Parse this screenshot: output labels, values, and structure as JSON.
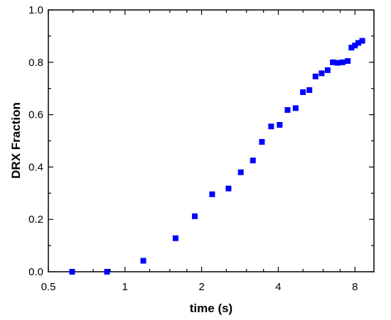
{
  "chart_data": {
    "type": "scatter",
    "xlabel": "time (s)",
    "ylabel": "DRX Fraction",
    "x_scale": "log2",
    "xlim": [
      0.5,
      9.5
    ],
    "ylim": [
      0.0,
      1.0
    ],
    "x_ticks": [
      0.5,
      1,
      2,
      4,
      8
    ],
    "x_tick_labels": [
      "0.5",
      "1",
      "2",
      "4",
      "8"
    ],
    "y_ticks": [
      0.0,
      0.2,
      0.4,
      0.6,
      0.8,
      1.0
    ],
    "y_tick_labels": [
      "0.0",
      "0.2",
      "0.4",
      "0.6",
      "0.8",
      "1.0"
    ],
    "grid": false,
    "marker": "square",
    "marker_color": "#0000ff",
    "series": [
      {
        "points": [
          [
            0.62,
            0.0
          ],
          [
            0.85,
            0.0
          ],
          [
            1.18,
            0.042
          ],
          [
            1.58,
            0.128
          ],
          [
            1.88,
            0.212
          ],
          [
            2.2,
            0.296
          ],
          [
            2.55,
            0.318
          ],
          [
            2.85,
            0.38
          ],
          [
            3.18,
            0.425
          ],
          [
            3.45,
            0.496
          ],
          [
            3.75,
            0.555
          ],
          [
            4.05,
            0.561
          ],
          [
            4.35,
            0.618
          ],
          [
            4.68,
            0.625
          ],
          [
            5.0,
            0.686
          ],
          [
            5.3,
            0.694
          ],
          [
            5.6,
            0.746
          ],
          [
            5.92,
            0.758
          ],
          [
            6.25,
            0.77
          ],
          [
            6.55,
            0.8
          ],
          [
            6.85,
            0.798
          ],
          [
            7.15,
            0.8
          ],
          [
            7.5,
            0.805
          ],
          [
            7.75,
            0.856
          ],
          [
            8.0,
            0.864
          ],
          [
            8.25,
            0.874
          ],
          [
            8.55,
            0.882
          ]
        ]
      }
    ]
  }
}
